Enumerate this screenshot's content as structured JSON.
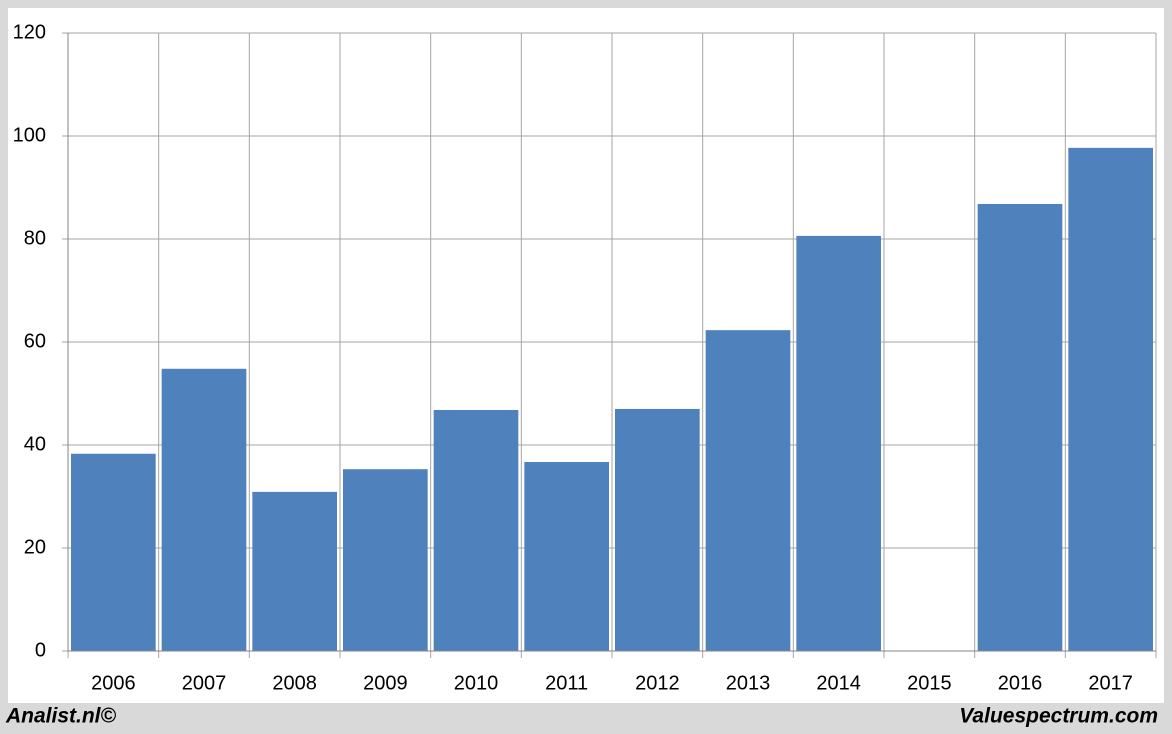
{
  "chart_data": {
    "type": "bar",
    "categories": [
      "2006",
      "2007",
      "2008",
      "2009",
      "2010",
      "2011",
      "2012",
      "2013",
      "2014",
      "2015",
      "2016",
      "2017"
    ],
    "values": [
      38.3,
      54.8,
      30.9,
      35.3,
      46.8,
      36.7,
      47,
      62.3,
      80.6,
      null,
      86.8,
      97.7
    ],
    "color": "#4f81bd",
    "ylim": [
      0,
      120
    ],
    "yticks": [
      0,
      20,
      40,
      60,
      80,
      100,
      120
    ],
    "grid": true
  },
  "footer": {
    "left": "Analist.nl©",
    "right": "Valuespectrum.com"
  }
}
